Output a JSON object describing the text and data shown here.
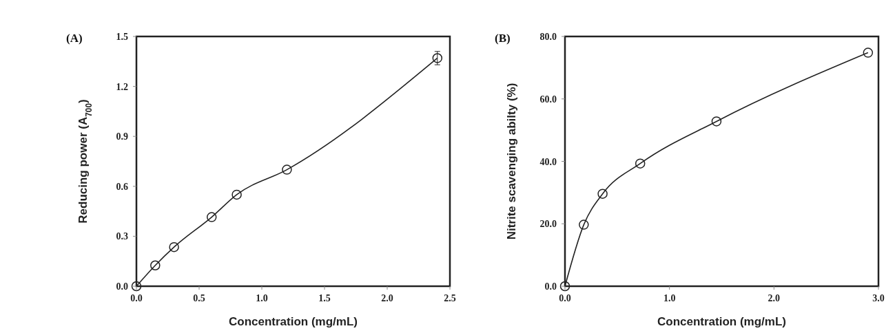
{
  "chart_data": [
    {
      "type": "line",
      "title": "(A)",
      "xlabel": "Concentration (mg/mL)",
      "ylabel": "Reducing  power (A$_{700}$)",
      "marker": "circle",
      "line_style": "solid",
      "x": [
        0,
        0.15,
        0.3,
        0.6,
        0.8,
        1.2,
        2.4
      ],
      "series": [
        {
          "color": "#222222",
          "values": [
            0,
            0.125,
            0.235,
            0.415,
            0.55,
            0.7,
            1.37
          ],
          "errors": [
            null,
            null,
            null,
            null,
            null,
            null,
            0.04
          ]
        }
      ],
      "xlim": [
        0,
        2.5
      ],
      "xticks": [
        {
          "value": 0,
          "label": "0.0"
        },
        {
          "value": 0.5,
          "label": "0.5"
        },
        {
          "value": 1,
          "label": "1.0"
        },
        {
          "value": 1.5,
          "label": "1.5"
        },
        {
          "value": 2,
          "label": "2.0"
        },
        {
          "value": 2.5,
          "label": "2.5"
        }
      ],
      "ylim": [
        0,
        1.5
      ],
      "yticks": [
        {
          "value": 0,
          "label": "0.0"
        },
        {
          "value": 0.3,
          "label": "0.3"
        },
        {
          "value": 0.6,
          "label": "0.6"
        },
        {
          "value": 0.9,
          "label": "0.9"
        },
        {
          "value": 1.2,
          "label": "1.2"
        },
        {
          "value": 1.5,
          "label": "1.5"
        }
      ]
    },
    {
      "type": "line",
      "title": "(B)",
      "xlabel": "Concentration (mg/mL)",
      "ylabel": "Nitrite scavenging abilty (%)",
      "marker": "circle",
      "line_style": "solid",
      "x": [
        0,
        0.18,
        0.36,
        0.72,
        1.45,
        2.9
      ],
      "series": [
        {
          "color": "#222222",
          "values": [
            0,
            19.7,
            29.6,
            39.3,
            52.8,
            74.8
          ]
        }
      ],
      "xlim": [
        0,
        3
      ],
      "xticks": [
        {
          "value": 0,
          "label": "0.0"
        },
        {
          "value": 1,
          "label": "1.0"
        },
        {
          "value": 2,
          "label": "2.0"
        },
        {
          "value": 3,
          "label": "3.0"
        }
      ],
      "ylim": [
        0,
        80
      ],
      "yticks": [
        {
          "value": 0,
          "label": "0.0"
        },
        {
          "value": 20,
          "label": "20.0"
        },
        {
          "value": 40,
          "label": "40.0"
        },
        {
          "value": 60,
          "label": "60.0"
        },
        {
          "value": 80,
          "label": "80.0"
        }
      ]
    }
  ]
}
